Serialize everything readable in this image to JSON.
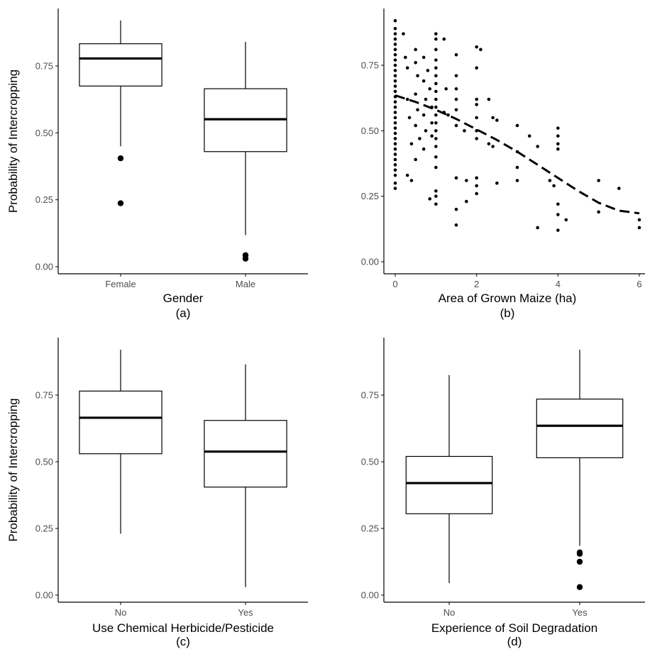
{
  "figure": {
    "panels": [
      {
        "id": "a",
        "caption": "(a)"
      },
      {
        "id": "b",
        "caption": "(b)"
      },
      {
        "id": "c",
        "caption": "(c)"
      },
      {
        "id": "d",
        "caption": "(d)"
      }
    ]
  },
  "chart_data": [
    {
      "type": "box",
      "panel": "(a)",
      "xlabel": "Gender",
      "ylabel": "Probability of Intercropping",
      "ylim": [
        -0.02,
        0.95
      ],
      "yticks": [
        0.0,
        0.25,
        0.5,
        0.75
      ],
      "ytick_labels": [
        "0.00",
        "0.25",
        "0.50",
        "0.75"
      ],
      "categories": [
        "Female",
        "Male"
      ],
      "boxes": [
        {
          "category": "Female",
          "min": 0.45,
          "q1": 0.675,
          "median": 0.778,
          "q3": 0.833,
          "max": 0.92,
          "outliers": [
            0.405,
            0.237
          ]
        },
        {
          "category": "Male",
          "min": 0.118,
          "q1": 0.43,
          "median": 0.551,
          "q3": 0.665,
          "max": 0.84,
          "outliers": [
            0.043,
            0.03
          ]
        }
      ]
    },
    {
      "type": "scatter",
      "panel": "(b)",
      "xlabel": "Area of Grown Maize (ha)",
      "ylabel": "",
      "xlim": [
        -0.3,
        6.3
      ],
      "ylim": [
        -0.02,
        0.95
      ],
      "xticks": [
        0,
        2,
        4,
        6
      ],
      "xtick_labels": [
        "0",
        "2",
        "4",
        "6"
      ],
      "yticks": [
        0.0,
        0.25,
        0.5,
        0.75
      ],
      "ytick_labels": [
        "0.00",
        "0.25",
        "0.50",
        "0.75"
      ],
      "points": [
        [
          0,
          0.92
        ],
        [
          0,
          0.89
        ],
        [
          0,
          0.87
        ],
        [
          0,
          0.85
        ],
        [
          0,
          0.83
        ],
        [
          0,
          0.81
        ],
        [
          0,
          0.79
        ],
        [
          0,
          0.77
        ],
        [
          0,
          0.75
        ],
        [
          0,
          0.73
        ],
        [
          0,
          0.71
        ],
        [
          0,
          0.69
        ],
        [
          0,
          0.67
        ],
        [
          0,
          0.65
        ],
        [
          0,
          0.63
        ],
        [
          0,
          0.61
        ],
        [
          0,
          0.59
        ],
        [
          0,
          0.57
        ],
        [
          0,
          0.55
        ],
        [
          0,
          0.53
        ],
        [
          0,
          0.51
        ],
        [
          0,
          0.49
        ],
        [
          0,
          0.47
        ],
        [
          0,
          0.45
        ],
        [
          0,
          0.43
        ],
        [
          0,
          0.41
        ],
        [
          0,
          0.39
        ],
        [
          0,
          0.37
        ],
        [
          0,
          0.35
        ],
        [
          0,
          0.33
        ],
        [
          0,
          0.3
        ],
        [
          0,
          0.28
        ],
        [
          0.2,
          0.87
        ],
        [
          0.25,
          0.78
        ],
        [
          0.3,
          0.74
        ],
        [
          0.3,
          0.62
        ],
        [
          0.35,
          0.55
        ],
        [
          0.3,
          0.33
        ],
        [
          0.4,
          0.45
        ],
        [
          0.4,
          0.31
        ],
        [
          0.5,
          0.81
        ],
        [
          0.5,
          0.76
        ],
        [
          0.55,
          0.71
        ],
        [
          0.5,
          0.64
        ],
        [
          0.55,
          0.58
        ],
        [
          0.5,
          0.52
        ],
        [
          0.6,
          0.47
        ],
        [
          0.5,
          0.39
        ],
        [
          0.7,
          0.78
        ],
        [
          0.7,
          0.69
        ],
        [
          0.75,
          0.62
        ],
        [
          0.7,
          0.56
        ],
        [
          0.75,
          0.5
        ],
        [
          0.7,
          0.43
        ],
        [
          0.8,
          0.73
        ],
        [
          0.85,
          0.66
        ],
        [
          0.85,
          0.24
        ],
        [
          0.9,
          0.59
        ],
        [
          0.9,
          0.53
        ],
        [
          0.9,
          0.48
        ],
        [
          1.0,
          0.87
        ],
        [
          1.0,
          0.85
        ],
        [
          1.0,
          0.81
        ],
        [
          1.0,
          0.77
        ],
        [
          1.0,
          0.74
        ],
        [
          1.0,
          0.71
        ],
        [
          1.0,
          0.68
        ],
        [
          1.0,
          0.65
        ],
        [
          1.0,
          0.62
        ],
        [
          1.0,
          0.59
        ],
        [
          1.0,
          0.56
        ],
        [
          1.0,
          0.53
        ],
        [
          1.0,
          0.5
        ],
        [
          1.0,
          0.47
        ],
        [
          1.0,
          0.44
        ],
        [
          1.0,
          0.4
        ],
        [
          1.0,
          0.36
        ],
        [
          1.0,
          0.27
        ],
        [
          1.0,
          0.25
        ],
        [
          1.0,
          0.22
        ],
        [
          1.2,
          0.85
        ],
        [
          1.2,
          0.57
        ],
        [
          1.25,
          0.66
        ],
        [
          1.3,
          0.56
        ],
        [
          1.5,
          0.79
        ],
        [
          1.5,
          0.71
        ],
        [
          1.5,
          0.66
        ],
        [
          1.5,
          0.62
        ],
        [
          1.5,
          0.58
        ],
        [
          1.5,
          0.52
        ],
        [
          1.5,
          0.32
        ],
        [
          1.5,
          0.2
        ],
        [
          1.5,
          0.14
        ],
        [
          1.7,
          0.5
        ],
        [
          1.75,
          0.23
        ],
        [
          1.75,
          0.31
        ],
        [
          2.0,
          0.82
        ],
        [
          2.0,
          0.74
        ],
        [
          2.0,
          0.62
        ],
        [
          2.0,
          0.6
        ],
        [
          2.0,
          0.55
        ],
        [
          2.0,
          0.5
        ],
        [
          2.0,
          0.47
        ],
        [
          2.0,
          0.32
        ],
        [
          2.0,
          0.29
        ],
        [
          2.0,
          0.26
        ],
        [
          2.1,
          0.81
        ],
        [
          2.3,
          0.62
        ],
        [
          2.3,
          0.45
        ],
        [
          2.4,
          0.55
        ],
        [
          2.4,
          0.44
        ],
        [
          2.5,
          0.54
        ],
        [
          2.5,
          0.3
        ],
        [
          3.0,
          0.52
        ],
        [
          3.0,
          0.42
        ],
        [
          3.0,
          0.36
        ],
        [
          3.0,
          0.31
        ],
        [
          3.3,
          0.48
        ],
        [
          3.5,
          0.44
        ],
        [
          3.5,
          0.13
        ],
        [
          3.8,
          0.31
        ],
        [
          3.9,
          0.29
        ],
        [
          4.0,
          0.51
        ],
        [
          4.0,
          0.48
        ],
        [
          4.0,
          0.45
        ],
        [
          4.0,
          0.43
        ],
        [
          4.0,
          0.22
        ],
        [
          4.0,
          0.18
        ],
        [
          4.0,
          0.12
        ],
        [
          4.2,
          0.16
        ],
        [
          5.0,
          0.31
        ],
        [
          5.0,
          0.19
        ],
        [
          5.5,
          0.28
        ],
        [
          6.0,
          0.16
        ],
        [
          6.0,
          0.13
        ]
      ],
      "trend": {
        "style": "dashed",
        "x": [
          0,
          0.5,
          1.0,
          1.5,
          2.0,
          2.5,
          3.0,
          3.5,
          4.0,
          4.5,
          5.0,
          5.5,
          6.0
        ],
        "y": [
          0.635,
          0.61,
          0.58,
          0.545,
          0.505,
          0.465,
          0.42,
          0.37,
          0.32,
          0.27,
          0.225,
          0.195,
          0.185
        ]
      }
    },
    {
      "type": "box",
      "panel": "(c)",
      "xlabel": "Use Chemical Herbicide/Pesticide",
      "ylabel": "Probability of Intercropping",
      "ylim": [
        -0.02,
        0.95
      ],
      "yticks": [
        0.0,
        0.25,
        0.5,
        0.75
      ],
      "ytick_labels": [
        "0.00",
        "0.25",
        "0.50",
        "0.75"
      ],
      "categories": [
        "No",
        "Yes"
      ],
      "boxes": [
        {
          "category": "No",
          "min": 0.23,
          "q1": 0.53,
          "median": 0.665,
          "q3": 0.765,
          "max": 0.92,
          "outliers": []
        },
        {
          "category": "Yes",
          "min": 0.03,
          "q1": 0.405,
          "median": 0.538,
          "q3": 0.655,
          "max": 0.865,
          "outliers": []
        }
      ]
    },
    {
      "type": "box",
      "panel": "(d)",
      "xlabel": "Experience of Soil Degradation",
      "ylabel": "",
      "ylim": [
        -0.02,
        0.95
      ],
      "yticks": [
        0.0,
        0.25,
        0.5,
        0.75
      ],
      "ytick_labels": [
        "0.00",
        "0.25",
        "0.50",
        "0.75"
      ],
      "categories": [
        "No",
        "Yes"
      ],
      "boxes": [
        {
          "category": "No",
          "min": 0.045,
          "q1": 0.305,
          "median": 0.42,
          "q3": 0.52,
          "max": 0.825,
          "outliers": []
        },
        {
          "category": "Yes",
          "min": 0.185,
          "q1": 0.515,
          "median": 0.635,
          "q3": 0.735,
          "max": 0.92,
          "outliers": [
            0.16,
            0.155,
            0.125,
            0.03
          ]
        }
      ]
    }
  ]
}
